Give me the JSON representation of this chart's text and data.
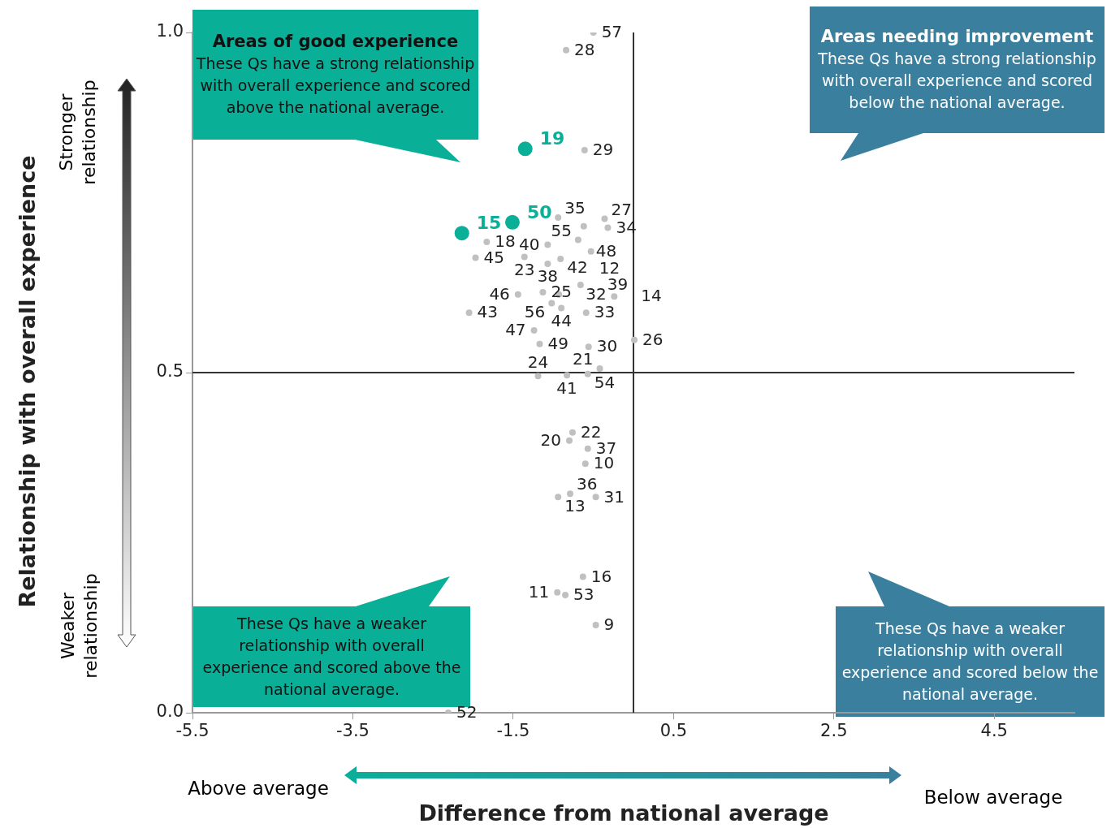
{
  "chart_data": {
    "type": "scatter",
    "xlabel": "Difference from national average",
    "xlim": [
      -5.5,
      5.5
    ],
    "xticks": [
      -5.5,
      -3.5,
      -1.5,
      0.5,
      2.5,
      4.5
    ],
    "ylim": [
      0,
      1
    ],
    "yticks": [
      {
        "value": 0,
        "label": "0.0"
      },
      {
        "value": 0.5,
        "label": "0.5"
      },
      {
        "value": 1,
        "label": "1.0"
      }
    ],
    "grid": false,
    "legend": false,
    "marker": "circle",
    "ref_lines": [
      {
        "axis": "x",
        "value": 0,
        "color": "#333333"
      },
      {
        "axis": "y",
        "value": 0.5,
        "color": "#333333"
      }
    ],
    "annotations": [
      "Areas of good experience",
      "These Qs have a strong relationship with overall experience and scored above the national average.",
      "Areas needing improvement",
      "These Qs have a strong relationship with overall experience and scored below the national average.",
      "These Qs have a weaker relationship with overall experience and scored above the national average.",
      "These Qs have a weaker relationship with overall experience and scored below the national average.",
      "Stronger relationship",
      "Weaker relationship",
      "Above average",
      "Below average",
      "Relationship with overall experience",
      {
        "text": "19",
        "x": -1.35,
        "y": 0.829
      },
      {
        "text": "50",
        "x": -1.51,
        "y": 0.721
      },
      {
        "text": "15",
        "x": -2.14,
        "y": 0.705
      },
      {
        "text": "57",
        "x": -0.5,
        "y": 1.0
      },
      {
        "text": "28",
        "x": -0.84,
        "y": 0.974
      },
      {
        "text": "29",
        "x": -0.61,
        "y": 0.827
      },
      {
        "text": "35",
        "x": -0.94,
        "y": 0.728
      },
      {
        "text": "27",
        "x": -0.36,
        "y": 0.726
      },
      {
        "text": "48",
        "x": -0.62,
        "y": 0.715
      },
      {
        "text": "34",
        "x": -0.32,
        "y": 0.713
      },
      {
        "text": "18",
        "x": -1.83,
        "y": 0.692
      },
      {
        "text": "40",
        "x": -1.07,
        "y": 0.688
      },
      {
        "text": "55",
        "x": -0.69,
        "y": 0.695
      },
      {
        "text": "12",
        "x": -0.53,
        "y": 0.678
      },
      {
        "text": "45",
        "x": -1.97,
        "y": 0.669
      },
      {
        "text": "23",
        "x": -1.36,
        "y": 0.67
      },
      {
        "text": "42",
        "x": -0.91,
        "y": 0.667
      },
      {
        "text": "38",
        "x": -1.07,
        "y": 0.66
      },
      {
        "text": "46",
        "x": -1.44,
        "y": 0.615
      },
      {
        "text": "25",
        "x": -1.13,
        "y": 0.618
      },
      {
        "text": "32",
        "x": -0.93,
        "y": 0.615
      },
      {
        "text": "56",
        "x": -1.02,
        "y": 0.602
      },
      {
        "text": "44",
        "x": -0.9,
        "y": 0.595
      },
      {
        "text": "33",
        "x": -0.59,
        "y": 0.588
      },
      {
        "text": "39",
        "x": -0.66,
        "y": 0.629
      },
      {
        "text": "14",
        "x": -0.24,
        "y": 0.612
      },
      {
        "text": "43",
        "x": -2.05,
        "y": 0.588
      },
      {
        "text": "47",
        "x": -1.24,
        "y": 0.562
      },
      {
        "text": "49",
        "x": -1.17,
        "y": 0.542
      },
      {
        "text": "30",
        "x": -0.56,
        "y": 0.538
      },
      {
        "text": "26",
        "x": 0.01,
        "y": 0.548
      },
      {
        "text": "21",
        "x": -0.42,
        "y": 0.506
      },
      {
        "text": "24",
        "x": -1.19,
        "y": 0.495
      },
      {
        "text": "41",
        "x": -0.83,
        "y": 0.496
      },
      {
        "text": "54",
        "x": -0.57,
        "y": 0.498
      },
      {
        "text": "22",
        "x": -0.76,
        "y": 0.412
      },
      {
        "text": "20",
        "x": -0.8,
        "y": 0.4
      },
      {
        "text": "37",
        "x": -0.57,
        "y": 0.388
      },
      {
        "text": "10",
        "x": -0.6,
        "y": 0.366
      },
      {
        "text": "13",
        "x": -0.94,
        "y": 0.317
      },
      {
        "text": "36",
        "x": -0.79,
        "y": 0.322
      },
      {
        "text": "31",
        "x": -0.47,
        "y": 0.317
      },
      {
        "text": "16",
        "x": -0.63,
        "y": 0.2
      },
      {
        "text": "11",
        "x": -0.95,
        "y": 0.177
      },
      {
        "text": "53",
        "x": -0.85,
        "y": 0.173
      },
      {
        "text": "9",
        "x": -0.47,
        "y": 0.129
      },
      {
        "text": "52",
        "x": -2.31,
        "y": 0.0
      }
    ],
    "series": [
      {
        "color": "#c0c0c0",
        "x": [
          -0.5,
          -0.84,
          -0.61,
          -0.94,
          -0.36,
          -0.62,
          -0.32,
          -1.83,
          -1.07,
          -0.69,
          -0.53,
          -1.97,
          -1.36,
          -0.91,
          -1.07,
          -1.44,
          -1.13,
          -0.93,
          -1.02,
          -0.9,
          -0.59,
          -0.66,
          -0.24,
          -2.05,
          -1.24,
          -1.17,
          -0.56,
          0.01,
          -0.42,
          -1.19,
          -0.83,
          -0.57,
          -0.76,
          -0.8,
          -0.57,
          -0.6,
          -0.94,
          -0.79,
          -0.47,
          -0.63,
          -0.95,
          -0.85,
          -0.47,
          -2.31
        ],
        "values": [
          1.0,
          0.974,
          0.827,
          0.728,
          0.726,
          0.715,
          0.713,
          0.692,
          0.688,
          0.695,
          0.678,
          0.669,
          0.67,
          0.667,
          0.66,
          0.615,
          0.618,
          0.615,
          0.602,
          0.595,
          0.588,
          0.629,
          0.612,
          0.588,
          0.562,
          0.542,
          0.538,
          0.548,
          0.506,
          0.495,
          0.496,
          0.498,
          0.412,
          0.4,
          0.388,
          0.366,
          0.317,
          0.322,
          0.317,
          0.2,
          0.177,
          0.173,
          0.129,
          0.0
        ]
      },
      {
        "color": "#0aaf98",
        "x": [
          -1.35,
          -1.51,
          -2.14
        ],
        "values": [
          0.829,
          0.721,
          0.705
        ]
      }
    ]
  }
}
